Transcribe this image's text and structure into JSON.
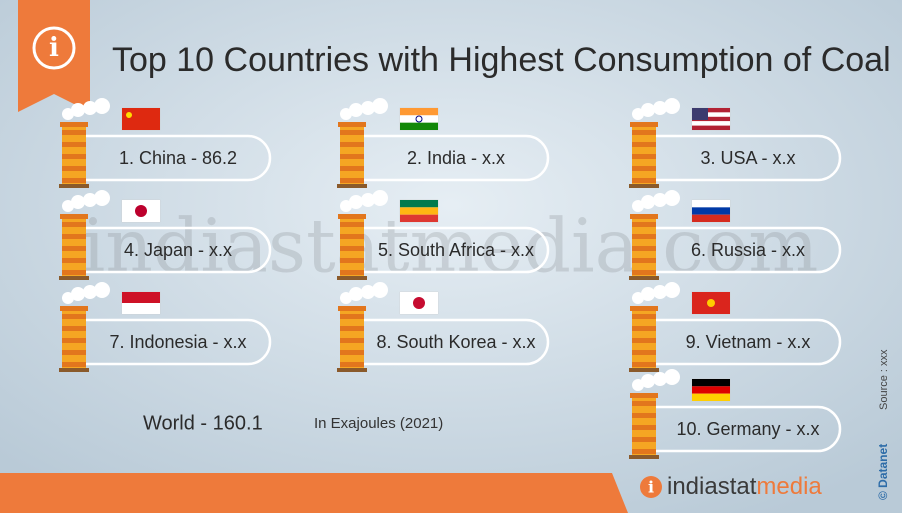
{
  "header": {
    "title": "Top 10 Countries with Highest Consumption of Coal"
  },
  "items": [
    {
      "label": "1. China - 86.2"
    },
    {
      "label": "2. India - x.x"
    },
    {
      "label": "3. USA - x.x"
    },
    {
      "label": "4. Japan - x.x"
    },
    {
      "label": "5. South Africa - x.x"
    },
    {
      "label": "6. Russia - x.x"
    },
    {
      "label": "7. Indonesia - x.x"
    },
    {
      "label": "8. South Korea - x.x"
    },
    {
      "label": "9. Vietnam - x.x"
    },
    {
      "label": "10. Germany - x.x"
    }
  ],
  "world": "World  -  160.1",
  "unit": "In Exajoules (2021)",
  "watermark": "indiastatmedia.com",
  "source": "Source : xxx",
  "credit": "© Datanet",
  "logo": {
    "part1": "indiastat",
    "part2": "media"
  }
}
